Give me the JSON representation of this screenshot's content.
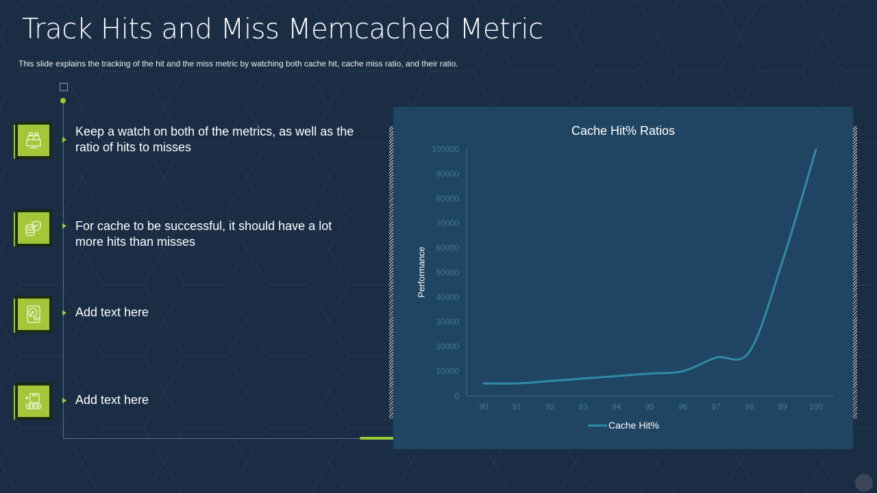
{
  "slide": {
    "title": "Track Hits and Miss Memcached Metric",
    "subtitle": "This slide explains the tracking of the hit and the miss metric by watching both cache hit, cache miss ratio, and their ratio."
  },
  "items": [
    {
      "icon": "monitor-users-icon",
      "text": "Keep a watch on both of the metrics, as well as the ratio of hits to misses"
    },
    {
      "icon": "database-shield-icon",
      "text": "For cache to be successful, it should have a lot more hits than misses"
    },
    {
      "icon": "hard-disk-icon",
      "text": "Add text here"
    },
    {
      "icon": "conveyor-box-icon",
      "text": "Add text here"
    }
  ],
  "colors": {
    "background": "#1a2d45",
    "accent": "#9acd32",
    "chart_panel": "#204562",
    "line": "#2f8aa8",
    "tick_text": "#3e7a98"
  },
  "chart_data": {
    "type": "line",
    "title": "Cache Hit% Ratios",
    "xlabel": "",
    "ylabel": "Performance",
    "categories": [
      "90",
      "91",
      "92",
      "93",
      "94",
      "95",
      "96",
      "97",
      "98",
      "99",
      "100"
    ],
    "series": [
      {
        "name": "Cache Hit%",
        "values": [
          5000,
          5000,
          6000,
          7000,
          8000,
          9000,
          10000,
          15500,
          18000,
          55000,
          100000
        ]
      }
    ],
    "yticks": [
      "0",
      "10000",
      "20000",
      "30000",
      "40000",
      "50000",
      "60000",
      "70000",
      "80000",
      "90000",
      "100000"
    ],
    "ylim": [
      0,
      100000
    ],
    "grid": false,
    "legend_position": "bottom",
    "smooth": true
  }
}
